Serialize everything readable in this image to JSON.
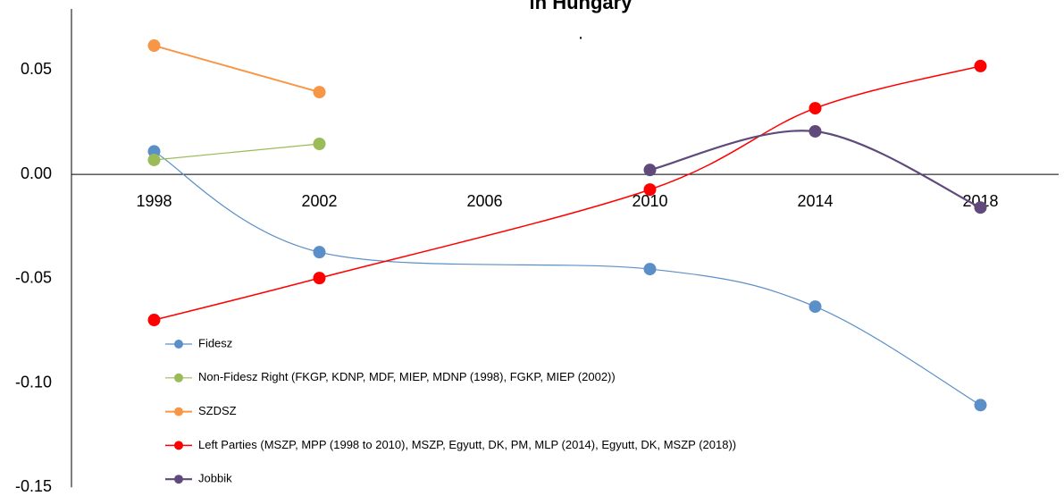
{
  "chart_data": {
    "type": "line",
    "title": "in Hungary",
    "annotation": ".",
    "smooth": true,
    "legend": "bottom-left",
    "xlim": [
      1996,
      2020
    ],
    "xticks": [
      1998,
      2002,
      2006,
      2010,
      2014,
      2018
    ],
    "ylim": [
      -0.15,
      0.08
    ],
    "yticks": [
      {
        "value": -0.15,
        "label": "-0.15"
      },
      {
        "value": -0.1,
        "label": "-0.10"
      },
      -0.05,
      {
        "value": 0,
        "label": "0.00"
      },
      0.05
    ],
    "series": [
      {
        "name": "Fidesz",
        "color": "#5b8fc7",
        "x": [
          1998,
          2002,
          2010,
          2014,
          2018
        ],
        "values": [
          0.011,
          -0.0373,
          -0.0454,
          -0.0634,
          -0.1106
        ]
      },
      {
        "name": "Non-Fidesz Right (FKGP, KDNP, MDF, MIEP, MDNP (1998), FGKP, MIEP (2002))",
        "color": "#9bbb59",
        "x": [
          1998,
          2002
        ],
        "values": [
          0.0069,
          0.0146
        ]
      },
      {
        "name": "SZDSZ",
        "color": "#f79646",
        "x": [
          1998,
          2002
        ],
        "values": [
          0.0617,
          0.0394
        ]
      },
      {
        "name": "Left Parties (MSZP, MPP (1998 to 2010), MSZP, Egyutt, DK, PM, MLP (2014), Egyutt, DK, MSZP (2018))",
        "color": "#ff0000",
        "x": [
          1998,
          2002,
          2010,
          2014,
          2018
        ],
        "values": [
          -0.0698,
          -0.0497,
          -0.0073,
          0.0317,
          0.0519
        ]
      },
      {
        "name": "Jobbik",
        "color": "#604a7b",
        "x": [
          2010,
          2014,
          2018
        ],
        "values": [
          0.0021,
          0.0206,
          -0.0159
        ]
      }
    ]
  }
}
